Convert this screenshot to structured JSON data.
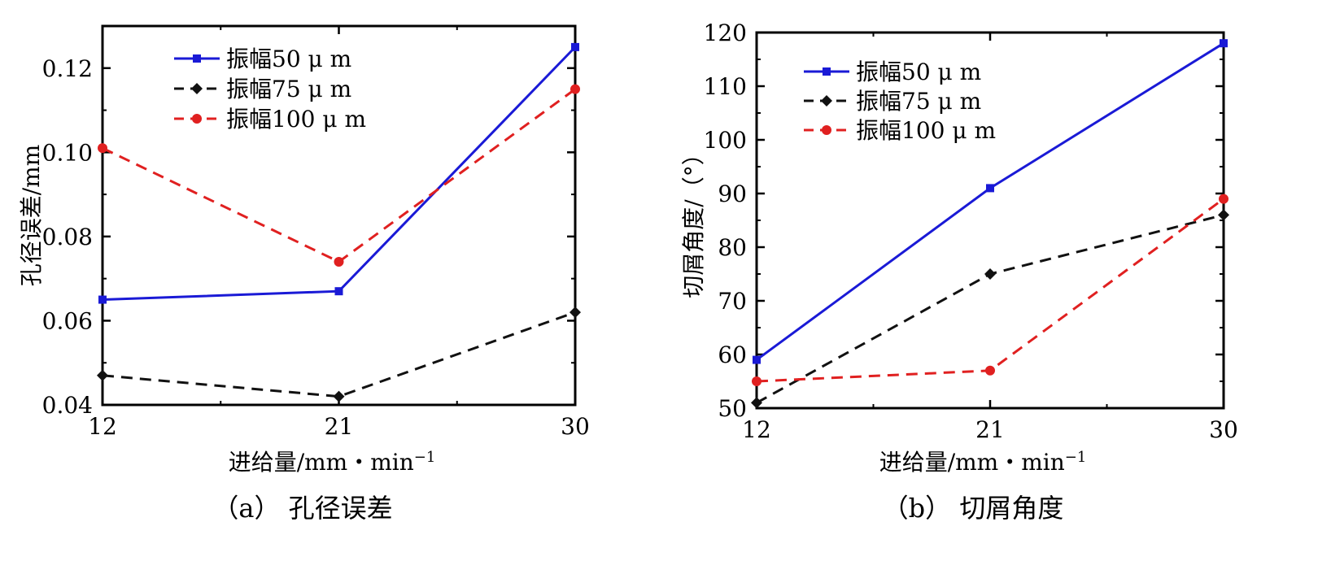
{
  "chart_data": [
    {
      "type": "line",
      "caption": "（a） 孔径误差",
      "title": "",
      "xlabel": "进给量/mm・min",
      "xlabel_sup": "−1",
      "ylabel": "孔径误差/mm",
      "categories": [
        "12",
        "21",
        "30"
      ],
      "x": [
        12,
        21,
        30
      ],
      "xlim": [
        12,
        30
      ],
      "ylim": [
        0.04,
        0.13
      ],
      "yticks": [
        "0.04",
        "0.06",
        "0.08",
        "0.10",
        "0.12"
      ],
      "legend_position": "top-left",
      "grid": false,
      "series": [
        {
          "name": "振幅50 μ m",
          "values": [
            0.065,
            0.067,
            0.125
          ],
          "color": "#1a1ad6",
          "marker": "square",
          "dash": "solid"
        },
        {
          "name": "振幅75 μ m",
          "values": [
            0.047,
            0.042,
            0.062
          ],
          "color": "#111111",
          "marker": "diamond",
          "dash": "dashed"
        },
        {
          "name": "振幅100 μ m",
          "values": [
            0.101,
            0.074,
            0.115
          ],
          "color": "#e02020",
          "marker": "circle",
          "dash": "dashed"
        }
      ]
    },
    {
      "type": "line",
      "caption": "（b） 切屑角度",
      "title": "",
      "xlabel": "进给量/mm・min",
      "xlabel_sup": "−1",
      "ylabel": "切屑角度/（°）",
      "categories": [
        "12",
        "21",
        "30"
      ],
      "x": [
        12,
        21,
        30
      ],
      "xlim": [
        12,
        30
      ],
      "ylim": [
        50,
        120
      ],
      "yticks": [
        "50",
        "60",
        "70",
        "80",
        "90",
        "100",
        "110",
        "120"
      ],
      "legend_position": "top-left",
      "grid": false,
      "series": [
        {
          "name": "振幅50 μ m",
          "values": [
            59,
            91,
            118
          ],
          "color": "#1a1ad6",
          "marker": "square",
          "dash": "solid"
        },
        {
          "name": "振幅75 μ m",
          "values": [
            51,
            75,
            86
          ],
          "color": "#111111",
          "marker": "diamond",
          "dash": "dashed"
        },
        {
          "name": "振幅100 μ m",
          "values": [
            55,
            57,
            89
          ],
          "color": "#e02020",
          "marker": "circle",
          "dash": "dashed"
        }
      ]
    }
  ]
}
